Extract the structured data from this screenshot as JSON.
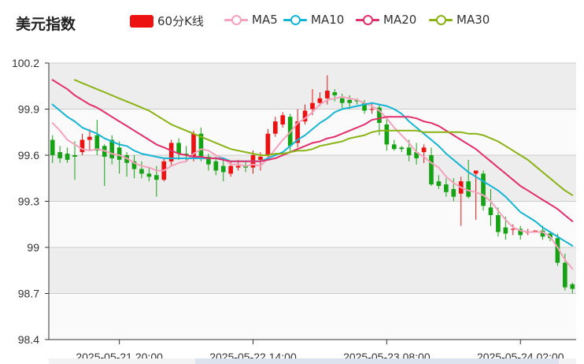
{
  "header": {
    "title": "美元指数"
  },
  "legend": [
    {
      "label": "60分K线",
      "color": "#ee1111",
      "kind": "rect"
    },
    {
      "label": "MA5",
      "color": "#f5a3bd",
      "kind": "line"
    },
    {
      "label": "MA10",
      "color": "#15b5d6",
      "kind": "line"
    },
    {
      "label": "MA20",
      "color": "#e52f6d",
      "kind": "line"
    },
    {
      "label": "MA30",
      "color": "#8ab314",
      "kind": "line"
    }
  ],
  "colors": {
    "up": "#ee1111",
    "down": "#15a315",
    "grid": "#cccccc",
    "band": "#ededed"
  },
  "chart_data": {
    "type": "candlestick",
    "title": "美元指数",
    "ylim": [
      98.4,
      100.2
    ],
    "yticks": [
      "100.2",
      "99.9",
      "99.6",
      "99.3",
      "99",
      "98.7",
      "98.4"
    ],
    "xticks": [
      {
        "index": 9,
        "label": "2025-05-21 20:00"
      },
      {
        "index": 27,
        "label": "2025-05-22 14:00"
      },
      {
        "index": 45,
        "label": "2025-05-23 08:00"
      },
      {
        "index": 63,
        "label": "2025-05-24 02:00"
      }
    ],
    "candles": [
      [
        99.7,
        99.6,
        99.73,
        99.55
      ],
      [
        99.62,
        99.58,
        99.66,
        99.55
      ],
      [
        99.61,
        99.57,
        99.65,
        99.55
      ],
      [
        99.6,
        99.59,
        99.69,
        99.44
      ],
      [
        99.62,
        99.7,
        99.74,
        99.6
      ],
      [
        99.7,
        99.72,
        99.77,
        99.63
      ],
      [
        99.73,
        99.63,
        99.83,
        99.6
      ],
      [
        99.66,
        99.59,
        99.67,
        99.4
      ],
      [
        99.7,
        99.58,
        99.73,
        99.54
      ],
      [
        99.65,
        99.57,
        99.69,
        99.48
      ],
      [
        99.6,
        99.55,
        99.62,
        99.46
      ],
      [
        99.56,
        99.51,
        99.6,
        99.45
      ],
      [
        99.51,
        99.48,
        99.56,
        99.45
      ],
      [
        99.48,
        99.46,
        99.52,
        99.43
      ],
      [
        99.47,
        99.44,
        99.53,
        99.33
      ],
      [
        99.44,
        99.56,
        99.58,
        99.43
      ],
      [
        99.56,
        99.68,
        99.7,
        99.53
      ],
      [
        99.68,
        99.61,
        99.71,
        99.57
      ],
      [
        99.61,
        99.6,
        99.66,
        99.56
      ],
      [
        99.59,
        99.74,
        99.76,
        99.56
      ],
      [
        99.74,
        99.59,
        99.78,
        99.56
      ],
      [
        99.59,
        99.54,
        99.61,
        99.5
      ],
      [
        99.56,
        99.5,
        99.59,
        99.47
      ],
      [
        99.53,
        99.49,
        99.57,
        99.43
      ],
      [
        99.48,
        99.53,
        99.56,
        99.46
      ],
      [
        99.52,
        99.53,
        99.57,
        99.5
      ],
      [
        99.53,
        99.52,
        99.56,
        99.49
      ],
      [
        99.52,
        99.6,
        99.63,
        99.48
      ],
      [
        99.57,
        99.59,
        99.62,
        99.5
      ],
      [
        99.6,
        99.74,
        99.77,
        99.58
      ],
      [
        99.74,
        99.82,
        99.85,
        99.72
      ],
      [
        99.8,
        99.86,
        99.88,
        99.78
      ],
      [
        99.85,
        99.66,
        99.87,
        99.62
      ],
      [
        99.68,
        99.82,
        99.9,
        99.65
      ],
      [
        99.82,
        99.89,
        99.93,
        99.8
      ],
      [
        99.9,
        99.94,
        100.03,
        99.86
      ],
      [
        99.94,
        99.97,
        100.01,
        99.92
      ],
      [
        99.97,
        100.02,
        100.12,
        99.93
      ],
      [
        100.01,
        99.99,
        100.03,
        99.95
      ],
      [
        99.97,
        99.94,
        100.0,
        99.9
      ],
      [
        99.96,
        99.94,
        99.99,
        99.9
      ],
      [
        99.96,
        99.95,
        99.97,
        99.93
      ],
      [
        99.94,
        99.89,
        99.96,
        99.87
      ],
      [
        99.9,
        99.9,
        99.94,
        99.87
      ],
      [
        99.91,
        99.81,
        99.93,
        99.73
      ],
      [
        99.8,
        99.67,
        99.85,
        99.63
      ],
      [
        99.67,
        99.64,
        99.7,
        99.63
      ],
      [
        99.65,
        99.64,
        99.66,
        99.62
      ],
      [
        99.65,
        99.6,
        99.7,
        99.56
      ],
      [
        99.62,
        99.58,
        99.68,
        99.54
      ],
      [
        99.62,
        99.65,
        99.67,
        99.55
      ],
      [
        99.6,
        99.41,
        99.65,
        99.4
      ],
      [
        99.43,
        99.4,
        99.47,
        99.38
      ],
      [
        99.41,
        99.36,
        99.45,
        99.33
      ],
      [
        99.38,
        99.33,
        99.45,
        99.3
      ],
      [
        99.35,
        99.43,
        99.46,
        99.14
      ],
      [
        99.43,
        99.33,
        99.57,
        99.32
      ],
      [
        99.48,
        99.5,
        99.5,
        99.18
      ],
      [
        99.48,
        99.27,
        99.5,
        99.24
      ],
      [
        99.26,
        99.21,
        99.38,
        99.14
      ],
      [
        99.21,
        99.1,
        99.26,
        99.07
      ],
      [
        99.13,
        99.09,
        99.2,
        99.05
      ],
      [
        99.12,
        99.12,
        99.15,
        99.08
      ],
      [
        99.12,
        99.08,
        99.14,
        99.05
      ],
      [
        99.1,
        99.1,
        99.12,
        99.08
      ],
      [
        99.11,
        99.11,
        99.11,
        99.1
      ],
      [
        99.11,
        99.07,
        99.14,
        99.05
      ],
      [
        99.09,
        99.06,
        99.1,
        99.04
      ],
      [
        99.06,
        98.9,
        99.09,
        98.88
      ],
      [
        98.9,
        98.74,
        98.96,
        98.72
      ],
      [
        98.76,
        98.73,
        98.77,
        98.7
      ]
    ],
    "series": [
      {
        "name": "MA5",
        "values": [
          99.81,
          99.76,
          99.7,
          99.67,
          99.64,
          99.63,
          99.64,
          99.63,
          99.61,
          99.6,
          99.58,
          99.55,
          99.53,
          99.52,
          99.5,
          99.5,
          99.53,
          99.55,
          99.56,
          99.61,
          99.64,
          99.63,
          99.6,
          99.58,
          99.54,
          99.54,
          99.53,
          99.54,
          99.53,
          99.58,
          99.64,
          99.7,
          99.75,
          99.81,
          99.84,
          99.88,
          99.93,
          99.96,
          99.97,
          99.98,
          99.97,
          99.96,
          99.94,
          99.92,
          99.89,
          99.84,
          99.78,
          99.73,
          99.68,
          99.62,
          99.59,
          99.55,
          99.52,
          99.46,
          99.42,
          99.39,
          99.37,
          99.36,
          99.34,
          99.3,
          99.24,
          99.18,
          99.13,
          99.11,
          99.1,
          99.1,
          99.1,
          99.07,
          99.0,
          98.92,
          98.86
        ]
      },
      {
        "name": "MA10",
        "values": [
          99.93,
          99.89,
          99.85,
          99.82,
          99.78,
          99.76,
          99.74,
          99.71,
          99.69,
          99.67,
          99.66,
          99.63,
          99.61,
          99.6,
          99.59,
          99.58,
          99.58,
          99.58,
          99.58,
          99.58,
          99.58,
          99.58,
          99.58,
          99.58,
          99.56,
          99.56,
          99.56,
          99.56,
          99.56,
          99.58,
          99.6,
          99.62,
          99.66,
          99.7,
          99.73,
          99.77,
          99.81,
          99.84,
          99.88,
          99.9,
          99.91,
          99.92,
          99.93,
          99.94,
          99.93,
          99.92,
          99.9,
          99.87,
          99.82,
          99.78,
          99.74,
          99.7,
          99.66,
          99.61,
          99.57,
          99.53,
          99.49,
          99.46,
          99.43,
          99.4,
          99.37,
          99.33,
          99.28,
          99.23,
          99.2,
          99.17,
          99.13,
          99.1,
          99.07,
          99.04,
          99.01
        ]
      },
      {
        "name": "MA20",
        "values": [
          100.09,
          100.06,
          100.03,
          99.99,
          99.96,
          99.93,
          99.91,
          99.88,
          99.85,
          99.82,
          99.79,
          99.76,
          99.73,
          99.7,
          99.67,
          99.65,
          99.63,
          99.61,
          99.6,
          99.59,
          99.59,
          99.58,
          99.58,
          99.57,
          99.56,
          99.56,
          99.56,
          99.56,
          99.56,
          99.57,
          99.58,
          99.6,
          99.62,
          99.64,
          99.66,
          99.68,
          99.69,
          99.71,
          99.72,
          99.74,
          99.76,
          99.78,
          99.8,
          99.83,
          99.84,
          99.85,
          99.85,
          99.85,
          99.85,
          99.84,
          99.82,
          99.81,
          99.79,
          99.76,
          99.73,
          99.7,
          99.67,
          99.64,
          99.6,
          99.56,
          99.52,
          99.48,
          99.44,
          99.4,
          99.37,
          99.34,
          99.31,
          99.28,
          99.25,
          99.21,
          99.17
        ]
      },
      {
        "name": "MA30",
        "values": [
          null,
          null,
          null,
          100.09,
          100.07,
          100.05,
          100.03,
          100.01,
          99.99,
          99.97,
          99.95,
          99.93,
          99.91,
          99.89,
          99.86,
          99.83,
          99.8,
          99.78,
          99.76,
          99.74,
          99.72,
          99.7,
          99.68,
          99.66,
          99.64,
          99.63,
          99.62,
          99.61,
          99.6,
          99.6,
          99.61,
          99.61,
          99.62,
          99.63,
          99.63,
          99.64,
          99.66,
          99.67,
          99.68,
          99.69,
          99.71,
          99.72,
          99.73,
          99.75,
          99.76,
          99.76,
          99.76,
          99.76,
          99.76,
          99.76,
          99.75,
          99.75,
          99.75,
          99.75,
          99.75,
          99.75,
          99.74,
          99.74,
          99.73,
          99.71,
          99.69,
          99.66,
          99.63,
          99.6,
          99.57,
          99.53,
          99.49,
          99.45,
          99.41,
          99.37,
          99.34
        ]
      }
    ]
  }
}
